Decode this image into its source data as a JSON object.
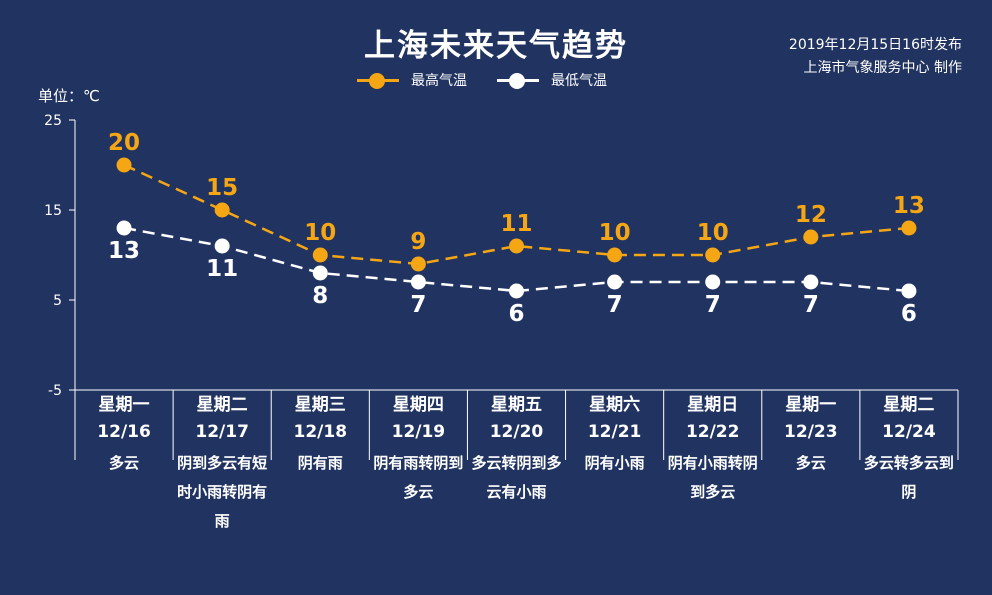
{
  "title": "上海未来天气趋势",
  "issue": {
    "time": "2019年12月15日16时发布",
    "agency": "上海市气象服务中心 制作"
  },
  "unit_label": "单位：℃",
  "colors": {
    "high": "#f5a614",
    "low": "#ffffff",
    "background": "#213360"
  },
  "chart_data": {
    "type": "line",
    "y_ticks": [
      25,
      15,
      5,
      -5
    ],
    "ylim": [
      -5,
      25
    ],
    "legend_position": "top-center",
    "categories": [
      "12/16",
      "12/17",
      "12/18",
      "12/19",
      "12/20",
      "12/21",
      "12/22",
      "12/23",
      "12/24"
    ],
    "series": [
      {
        "name": "最高气温",
        "values": [
          20,
          15,
          10,
          9,
          11,
          10,
          10,
          12,
          13
        ]
      },
      {
        "name": "最低气温",
        "values": [
          13,
          11,
          8,
          7,
          6,
          7,
          7,
          7,
          6
        ]
      }
    ]
  },
  "days": [
    {
      "weekday": "星期一",
      "date": "12/16",
      "weather": "多云"
    },
    {
      "weekday": "星期二",
      "date": "12/17",
      "weather": "阴到多云有短时小雨转阴有雨"
    },
    {
      "weekday": "星期三",
      "date": "12/18",
      "weather": "阴有雨"
    },
    {
      "weekday": "星期四",
      "date": "12/19",
      "weather": "阴有雨转阴到多云"
    },
    {
      "weekday": "星期五",
      "date": "12/20",
      "weather": "多云转阴到多云有小雨"
    },
    {
      "weekday": "星期六",
      "date": "12/21",
      "weather": "阴有小雨"
    },
    {
      "weekday": "星期日",
      "date": "12/22",
      "weather": "阴有小雨转阴到多云"
    },
    {
      "weekday": "星期一",
      "date": "12/23",
      "weather": "多云"
    },
    {
      "weekday": "星期二",
      "date": "12/24",
      "weather": "多云转多云到阴"
    }
  ]
}
